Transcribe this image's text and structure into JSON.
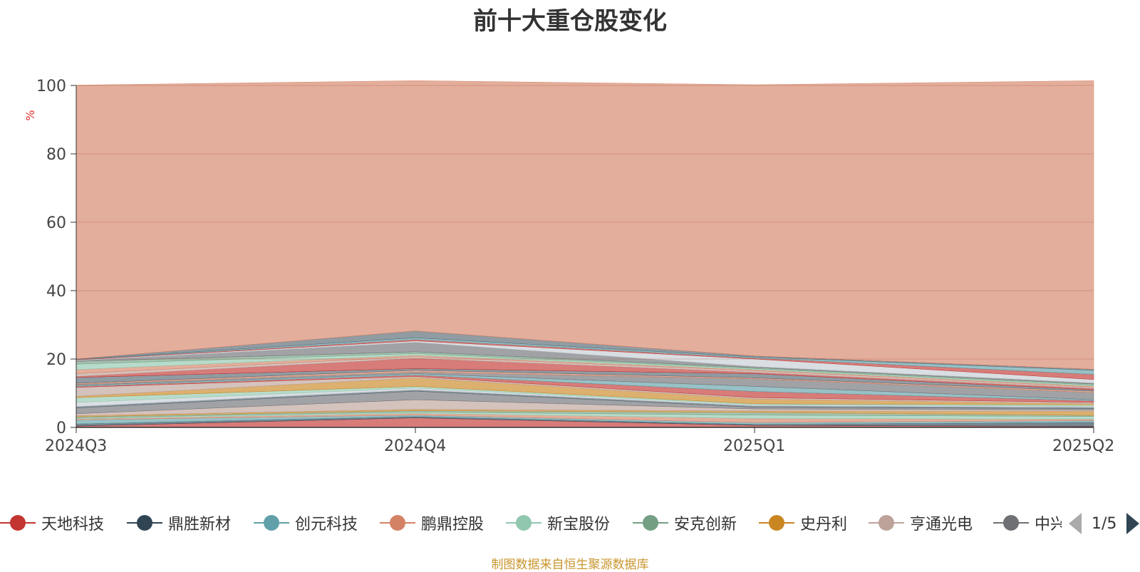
{
  "chart_data": {
    "type": "area",
    "stacked": true,
    "title": "前十大重仓股变化",
    "ylabel": "%",
    "categories": [
      "2024Q3",
      "2024Q4",
      "2025Q1",
      "2025Q2"
    ],
    "yticks": [
      "0",
      "20",
      "40",
      "60",
      "80",
      "100"
    ],
    "ylim": [
      0,
      100
    ],
    "grid": true,
    "series": [
      {
        "name": "天地科技",
        "color": "#c23531",
        "values": [
          0.4,
          2.8,
          0.6,
          0.3
        ]
      },
      {
        "name": "鼎胜新材",
        "color": "#2f4554",
        "values": [
          0.6,
          0.4,
          0.3,
          1.2
        ]
      },
      {
        "name": "创元科技",
        "color": "#61a0a8",
        "values": [
          1.2,
          0.4,
          0.5,
          0.5
        ]
      },
      {
        "name": "鹏鼎控股",
        "color": "#d48265",
        "values": [
          0.3,
          0.5,
          1.2,
          0.4
        ]
      },
      {
        "name": "新宝股份",
        "color": "#91c7ae",
        "values": [
          0.3,
          0.4,
          1.0,
          0.8
        ]
      },
      {
        "name": "安克创新",
        "color": "#749f83",
        "values": [
          0.3,
          0.4,
          0.8,
          0.3
        ]
      },
      {
        "name": "史丹利",
        "color": "#ca8622",
        "values": [
          0.3,
          0.4,
          0.4,
          1.2
        ]
      },
      {
        "name": "亨通光电",
        "color": "#bda29a",
        "values": [
          0.6,
          2.8,
          0.6,
          0.4
        ]
      },
      {
        "name": "中兴通讯",
        "color": "#6e7074",
        "values": [
          1.7,
          2.5,
          0.5,
          0.4
        ]
      },
      {
        "name": "",
        "color": "#546570",
        "values": [
          0.4,
          0.4,
          0.4,
          0.4
        ]
      },
      {
        "name": "",
        "color": "#c4ccd3",
        "values": [
          1.2,
          0.5,
          0.3,
          0.3
        ]
      },
      {
        "name": "",
        "color": "#91c7ae",
        "values": [
          1.4,
          0.5,
          0.3,
          0.4
        ]
      },
      {
        "name": "",
        "color": "#ca8622",
        "values": [
          0.4,
          2.5,
          1.4,
          0.3
        ]
      },
      {
        "name": "",
        "color": "#bda29a",
        "values": [
          2.6,
          0.4,
          0.4,
          0.4
        ]
      },
      {
        "name": "",
        "color": "#c23531",
        "values": [
          0.3,
          0.4,
          1.8,
          0.5
        ]
      },
      {
        "name": "",
        "color": "#61a0a8",
        "values": [
          0.3,
          0.4,
          1.5,
          0.3
        ]
      },
      {
        "name": "",
        "color": "#6e7074",
        "values": [
          0.3,
          0.5,
          2.2,
          2.1
        ]
      },
      {
        "name": "",
        "color": "#d48265",
        "values": [
          0.3,
          0.5,
          0.3,
          0.4
        ]
      },
      {
        "name": "",
        "color": "#546570",
        "values": [
          1.7,
          0.5,
          1.2,
          0.4
        ]
      },
      {
        "name": "",
        "color": "#c23531",
        "values": [
          0.3,
          3.0,
          0.4,
          0.4
        ]
      },
      {
        "name": "",
        "color": "#bda29a",
        "values": [
          0.8,
          0.5,
          0.5,
          0.4
        ]
      },
      {
        "name": "",
        "color": "#d48265",
        "values": [
          1.2,
          0.4,
          0.3,
          0.3
        ]
      },
      {
        "name": "",
        "color": "#91c7ae",
        "values": [
          1.6,
          0.5,
          0.3,
          0.3
        ]
      },
      {
        "name": "",
        "color": "#749f83",
        "values": [
          0.8,
          0.5,
          0.3,
          0.3
        ]
      },
      {
        "name": "",
        "color": "#6e7074",
        "values": [
          0.2,
          2.8,
          0.3,
          0.3
        ]
      },
      {
        "name": "",
        "color": "#c4ccd3",
        "values": [
          0.2,
          0.4,
          2.2,
          1.0
        ]
      },
      {
        "name": "",
        "color": "#c23531",
        "values": [
          0.1,
          0.4,
          0.3,
          1.5
        ]
      },
      {
        "name": "",
        "color": "#61a0a8",
        "values": [
          0.1,
          0.5,
          0.3,
          1.2
        ]
      },
      {
        "name": "",
        "color": "#546570",
        "values": [
          0.1,
          2.0,
          0.3,
          0.3
        ]
      },
      {
        "name": "",
        "color": "#d48265",
        "values": [
          80.1,
          73.2,
          79.3,
          84.4
        ]
      }
    ]
  },
  "legend": {
    "items": [
      {
        "name": "天地科技",
        "color": "#c23531"
      },
      {
        "name": "鼎胜新材",
        "color": "#2f4554"
      },
      {
        "name": "创元科技",
        "color": "#61a0a8"
      },
      {
        "name": "鹏鼎控股",
        "color": "#d48265"
      },
      {
        "name": "新宝股份",
        "color": "#91c7ae"
      },
      {
        "name": "安克创新",
        "color": "#749f83"
      },
      {
        "name": "史丹利",
        "color": "#ca8622"
      },
      {
        "name": "亨通光电",
        "color": "#bda29a"
      },
      {
        "name": "中兴通讯",
        "color": "#6e7074"
      }
    ],
    "page_text": "1/5",
    "prev_icon": "chevron-left-icon",
    "next_icon": "chevron-right-icon"
  },
  "footer": {
    "source": "制图数据来自恒生聚源数据库"
  }
}
